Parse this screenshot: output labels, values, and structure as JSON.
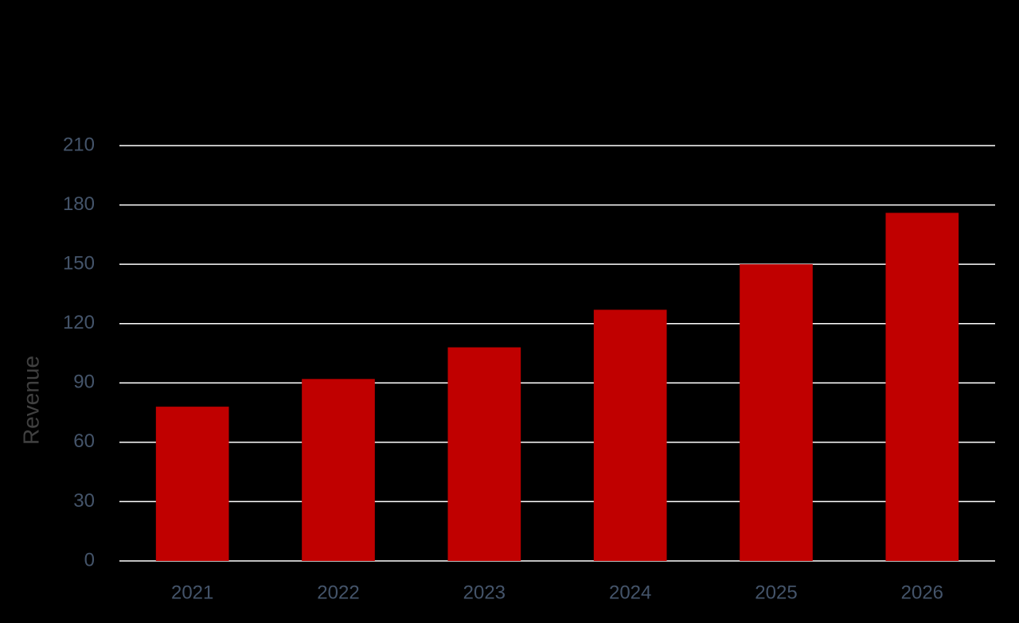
{
  "chart_data": {
    "type": "bar",
    "title": "",
    "xlabel": "",
    "ylabel": "Revenue",
    "categories": [
      "2021",
      "2022",
      "2023",
      "2024",
      "2025",
      "2026"
    ],
    "series": [
      {
        "values": [
          78,
          92,
          108,
          127,
          150,
          176
        ],
        "color": "#C00000"
      }
    ],
    "ylim": [
      0,
      210
    ],
    "yticks": [
      0,
      30,
      60,
      90,
      120,
      150,
      180,
      210
    ],
    "grid": true,
    "legend": "none",
    "background": "#000000",
    "gridline_color": "#FFFFFF",
    "tick_label_color": "#44546A",
    "axis_title_color": "#404040"
  }
}
